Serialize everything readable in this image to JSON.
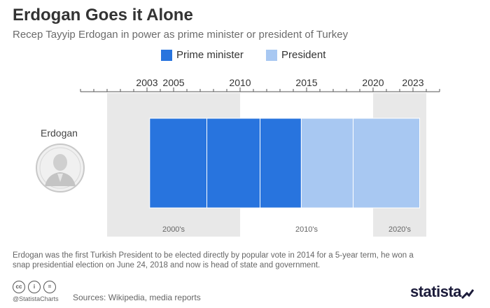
{
  "header": {
    "title": "Erdogan Goes it Alone",
    "subtitle": "Recep Tayyip Erdogan in power as prime minister or president of Turkey"
  },
  "colors": {
    "prime_minister": "#2874de",
    "president": "#a8c8f2",
    "decade_band": "#e8e8e8",
    "axis": "#555555"
  },
  "chart_data": {
    "type": "bar",
    "orientation": "horizontal-timeline",
    "xlim": [
      1998,
      2025
    ],
    "axis_position": "top",
    "tick_labels": [
      "2003",
      "2005",
      "2010",
      "2015",
      "2020",
      "2023"
    ],
    "legend": {
      "placement": "top-center",
      "entries": [
        {
          "key": "prime_minister",
          "label": "Prime minister"
        },
        {
          "key": "president",
          "label": "President"
        }
      ]
    },
    "rows": [
      {
        "label": "Erdogan"
      }
    ],
    "segments": [
      {
        "role": "prime_minister",
        "start": 2003.2,
        "end": 2007.5
      },
      {
        "role": "prime_minister",
        "start": 2007.5,
        "end": 2011.5
      },
      {
        "role": "prime_minister",
        "start": 2011.5,
        "end": 2014.6
      },
      {
        "role": "president",
        "start": 2014.6,
        "end": 2018.5
      },
      {
        "role": "president",
        "start": 2018.5,
        "end": 2023.5
      }
    ],
    "decades": [
      {
        "label": "2000's",
        "start": 2000,
        "end": 2010,
        "shaded": true
      },
      {
        "label": "2010's",
        "start": 2010,
        "end": 2020,
        "shaded": false
      },
      {
        "label": "2020's",
        "start": 2020,
        "end": 2024,
        "shaded": true
      }
    ]
  },
  "row_icon": "erdogan-portrait-icon",
  "footer": {
    "note": "Erdogan was the first Turkish President to be elected directly by popular vote in 2014 for a 5-year term, he won a snap presidential election on June 24, 2018 and now is head of state and government.",
    "license_icons": [
      "cc-icon",
      "person-icon",
      "equals-icon"
    ],
    "license_glyphs": [
      "cc",
      "i",
      "="
    ],
    "handle": "@StatistaCharts",
    "sources": "Sources: Wikipedia, media reports",
    "logo": "statista"
  }
}
